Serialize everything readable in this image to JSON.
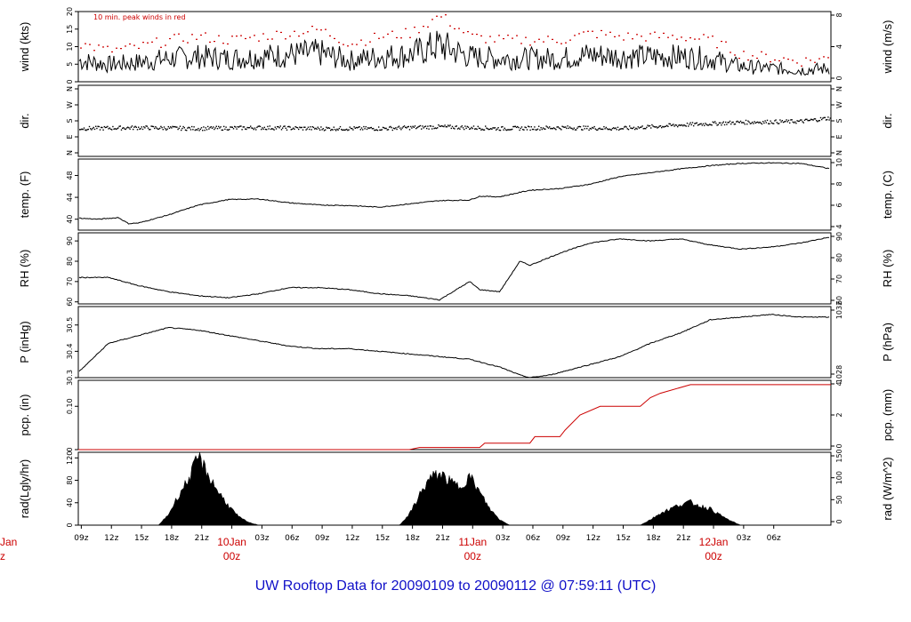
{
  "footer": "UW Rooftop Data for 20090109  to  20090112 @ 07:59:11  (UTC)",
  "annotation": "10 min. peak winds in red",
  "colors": {
    "series": "#000000",
    "peak": "#cc0000",
    "precip": "#cc0000",
    "footer": "#1010c8",
    "day_label": "#cc0000"
  },
  "chart_data": [
    {
      "type": "line",
      "title": "",
      "ylabel": "wind (kts)",
      "ylabel_right": "wind (m/s)",
      "ylim": [
        0,
        20
      ],
      "yticks": [
        0,
        5,
        10,
        15,
        20
      ],
      "yticks_right": [
        "0",
        "4",
        "8"
      ],
      "series": [
        {
          "name": "10 min. peak winds in red",
          "hours": [
            0,
            3,
            6,
            9,
            12,
            15,
            18,
            21,
            24,
            27,
            30,
            33,
            36,
            39,
            42,
            45,
            48,
            51,
            54,
            57,
            60,
            63,
            66,
            69,
            72,
            75
          ],
          "values": [
            11,
            9,
            10,
            12,
            13,
            12,
            13,
            14,
            15,
            11,
            13,
            14,
            19,
            13,
            12,
            12,
            12,
            14,
            13,
            13,
            13,
            12,
            8,
            7,
            6,
            7
          ]
        }
      ]
    },
    {
      "type": "scatter",
      "ylabel": "dir.",
      "ylabel_right": "dir.",
      "yticks": [
        "N",
        "E",
        "S",
        "W",
        "N"
      ],
      "yticks_right": [
        "N",
        "E",
        "S",
        "W",
        "N"
      ],
      "series": [
        {
          "name": "",
          "hours": [
            0,
            6,
            12,
            18,
            24,
            30,
            36,
            42,
            48,
            54,
            60,
            66,
            72,
            75
          ],
          "values": [
            140,
            145,
            140,
            145,
            140,
            140,
            150,
            140,
            145,
            140,
            160,
            175,
            180,
            200
          ]
        }
      ]
    },
    {
      "type": "line",
      "ylabel": "temp. (F)",
      "ylabel_right": "temp. (C)",
      "ylim": [
        38,
        51
      ],
      "yticks": [
        40,
        44,
        48
      ],
      "yticks_right": [
        "4",
        "6",
        "8",
        "10"
      ],
      "series": [
        {
          "name": "",
          "hours": [
            0,
            2,
            4,
            5,
            6,
            9,
            12,
            15,
            18,
            21,
            24,
            27,
            30,
            33,
            36,
            39,
            40,
            42,
            45,
            48,
            51,
            54,
            57,
            60,
            63,
            66,
            69,
            72,
            75
          ],
          "values": [
            40.2,
            40,
            40.3,
            39.2,
            39.3,
            40.8,
            42.6,
            43.6,
            43.7,
            43,
            42.6,
            42.5,
            42.2,
            42.8,
            43.4,
            43.5,
            44.2,
            44.1,
            45.3,
            45.6,
            46.4,
            47.8,
            48.5,
            49.2,
            49.8,
            50.2,
            50.3,
            50.2,
            49.2
          ]
        }
      ]
    },
    {
      "type": "line",
      "ylabel": "RH (%)",
      "ylabel_right": "RH (%)",
      "ylim": [
        59,
        94
      ],
      "yticks": [
        60,
        70,
        80,
        90
      ],
      "yticks_right": [
        "60",
        "70",
        "80",
        "90"
      ],
      "series": [
        {
          "name": "",
          "hours": [
            0,
            3,
            6,
            9,
            12,
            15,
            18,
            21,
            24,
            27,
            30,
            33,
            36,
            39,
            40,
            42,
            44,
            45,
            48,
            51,
            54,
            57,
            60,
            63,
            66,
            69,
            72,
            75
          ],
          "values": [
            72,
            72,
            68,
            65,
            63,
            62,
            64,
            67,
            67,
            66,
            64,
            63,
            61,
            70,
            66,
            65,
            80,
            78,
            84,
            89,
            91,
            90,
            91,
            88,
            86,
            87,
            89,
            92
          ]
        }
      ]
    },
    {
      "type": "line",
      "ylabel": "P (inHg)",
      "ylabel_right": "P (hPa)",
      "ylim": [
        30.3,
        30.57
      ],
      "yticks": [
        30.3,
        30.4,
        30.5
      ],
      "yticks_right": [
        "1028",
        "1032"
      ],
      "series": [
        {
          "name": "",
          "hours": [
            0,
            3,
            6,
            9,
            12,
            15,
            18,
            21,
            24,
            27,
            30,
            33,
            36,
            39,
            42,
            44,
            45,
            47,
            48,
            51,
            54,
            57,
            60,
            63,
            66,
            69,
            72,
            75
          ],
          "values": [
            30.32,
            30.43,
            30.46,
            30.49,
            30.48,
            30.46,
            30.44,
            30.42,
            30.41,
            30.41,
            30.4,
            30.39,
            30.38,
            30.37,
            30.34,
            30.31,
            30.3,
            30.31,
            30.32,
            30.35,
            30.38,
            30.43,
            30.47,
            30.52,
            30.53,
            30.54,
            30.53,
            30.53
          ]
        }
      ]
    },
    {
      "type": "area",
      "ylabel": "pcp. (in)",
      "ylabel_right": "pcp. (mm)",
      "ylim": [
        0,
        0.16
      ],
      "yticks": [
        0,
        0.1
      ],
      "yticks_right": [
        "0",
        "2",
        "4"
      ],
      "series": [
        {
          "name": "",
          "hours": [
            0,
            33,
            34,
            40,
            40.5,
            45,
            45.5,
            48,
            48.5,
            50,
            52,
            56,
            57,
            58,
            61,
            63,
            75
          ],
          "values": [
            0,
            0,
            0.005,
            0.005,
            0.015,
            0.015,
            0.03,
            0.03,
            0.045,
            0.08,
            0.1,
            0.1,
            0.12,
            0.13,
            0.15,
            0.15,
            0.15
          ]
        }
      ]
    },
    {
      "type": "area",
      "ylabel": "rad(Lgly/hr)",
      "ylabel_right": "rad (W/m^2)",
      "ylim": [
        0,
        130
      ],
      "yticks": [
        0,
        40,
        80,
        120
      ],
      "yticks_right": [
        "0",
        "50",
        "100",
        "150"
      ],
      "series": [
        {
          "name": "",
          "hours": [
            0,
            8,
            9,
            10,
            11,
            12,
            13,
            14,
            15,
            16,
            17,
            18,
            32,
            33,
            34,
            35,
            36,
            37,
            38,
            39,
            40,
            41,
            42,
            43,
            56,
            57,
            58,
            59,
            60,
            61,
            62,
            63,
            64,
            65,
            66,
            75
          ],
          "values": [
            0,
            0,
            20,
            55,
            85,
            125,
            90,
            60,
            35,
            15,
            5,
            0,
            0,
            20,
            55,
            85,
            95,
            80,
            70,
            90,
            60,
            30,
            10,
            0,
            0,
            10,
            22,
            30,
            38,
            42,
            35,
            30,
            18,
            8,
            0,
            0
          ]
        }
      ]
    }
  ],
  "xaxis": {
    "hours_start": "09z",
    "ticks": [
      "09z",
      "12z",
      "15z",
      "18z",
      "21z",
      "",
      "03z",
      "06z",
      "09z",
      "12z",
      "15z",
      "18z",
      "21z",
      "",
      "03z",
      "06z",
      "09z",
      "12z",
      "15z",
      "18z",
      "21z",
      "",
      "03z",
      "06z"
    ],
    "day_labels": [
      {
        "hour": 15,
        "line1": "10Jan",
        "line2": "00z"
      },
      {
        "hour": 39,
        "line1": "11Jan",
        "line2": "00z"
      },
      {
        "hour": 63,
        "line1": "12Jan",
        "line2": "00z"
      }
    ],
    "left_clipped_day": {
      "line1": "Jan",
      "line2": "z"
    }
  }
}
